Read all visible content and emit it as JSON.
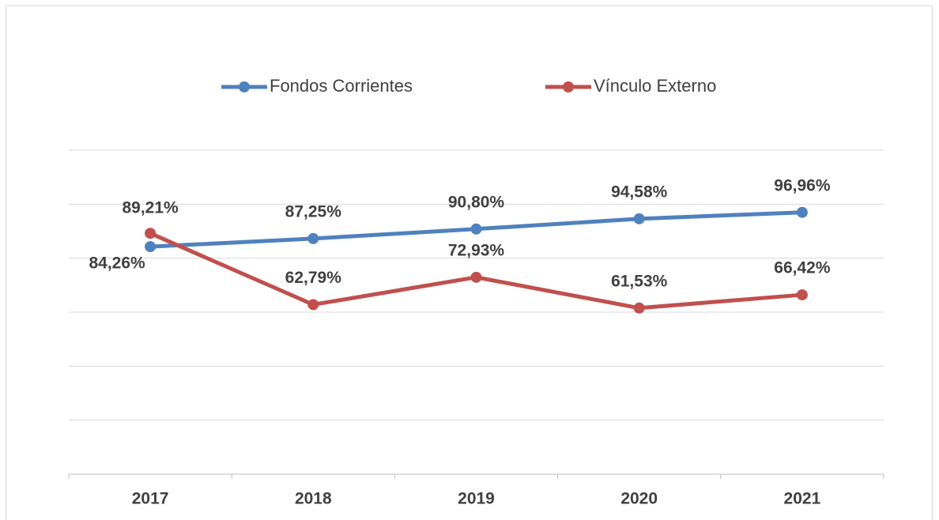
{
  "chart_data": {
    "type": "line",
    "categories": [
      "2017",
      "2018",
      "2019",
      "2020",
      "2021"
    ],
    "series": [
      {
        "name": "Fondos Corrientes",
        "color": "#4f81bd",
        "values": [
          84.26,
          87.25,
          90.8,
          94.58,
          96.96
        ],
        "value_labels": [
          "84,26%",
          "87,25%",
          "90,80%",
          "94,58%",
          "96,96%"
        ]
      },
      {
        "name": "Vínculo Externo",
        "color": "#c0504d",
        "values": [
          89.21,
          62.79,
          72.93,
          61.53,
          66.42
        ],
        "value_labels": [
          "89,21%",
          "62,79%",
          "72,93%",
          "61,53%",
          "66,42%"
        ]
      }
    ],
    "ylim": [
      0,
      120
    ],
    "yticks": [
      0,
      20,
      40,
      60,
      80,
      100,
      120
    ],
    "grid": true,
    "legend": "top"
  }
}
